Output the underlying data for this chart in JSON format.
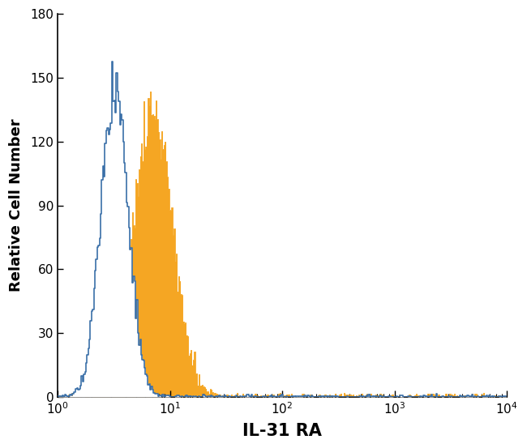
{
  "title": "",
  "xlabel": "IL-31 RA",
  "ylabel": "Relative Cell Number",
  "xlim": [
    1,
    10000
  ],
  "ylim": [
    0,
    180
  ],
  "yticks": [
    0,
    30,
    60,
    90,
    120,
    150,
    180
  ],
  "blue_color": "#3a6fa8",
  "orange_color": "#f5a623",
  "orange_fill_color": "#f5a623",
  "blue_peak_x": 3.2,
  "blue_peak_y": 155,
  "orange_peak_x": 7.0,
  "orange_peak_y": 143,
  "xlabel_fontsize": 15,
  "ylabel_fontsize": 13,
  "tick_fontsize": 11,
  "background_color": "#ffffff",
  "figsize": [
    6.5,
    5.53
  ],
  "dpi": 100
}
